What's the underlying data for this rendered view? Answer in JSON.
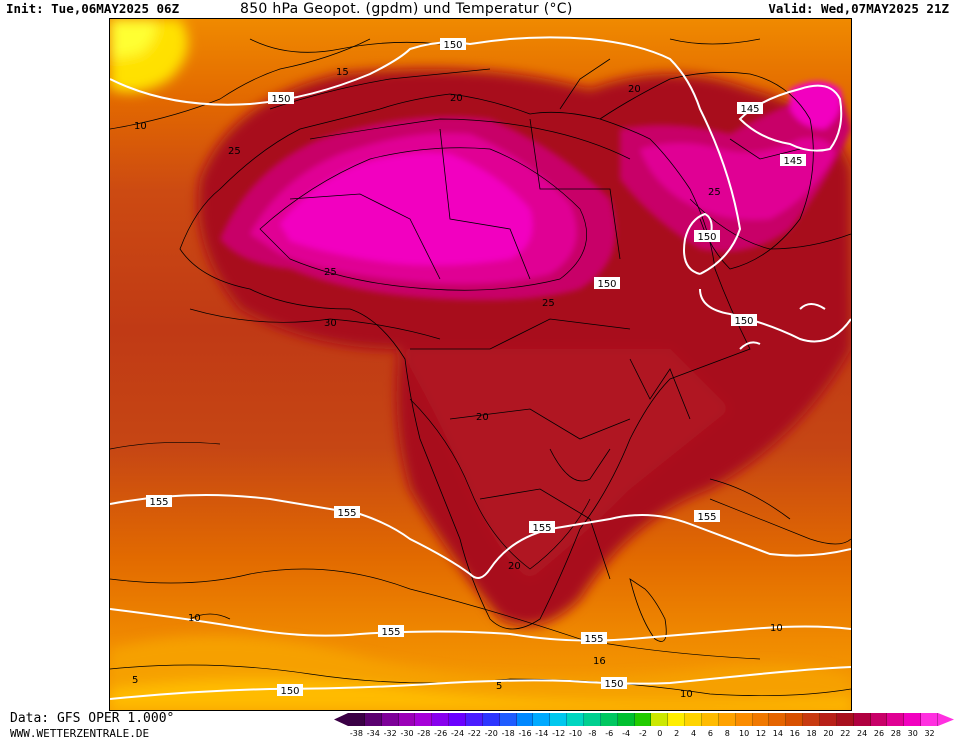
{
  "header": {
    "init": "Init: Tue,06MAY2025 06Z",
    "title": "850 hPa Geopot. (gpdm) und Temperatur (°C)",
    "valid": "Valid: Wed,07MAY2025 21Z"
  },
  "footer": {
    "data_source": "Data: GFS OPER 1.000°",
    "url": "WWW.WETTERZENTRALE.DE"
  },
  "map": {
    "geopotential_labels": [
      "150",
      "150",
      "145",
      "145",
      "150",
      "150",
      "150",
      "155",
      "155",
      "155",
      "155",
      "155",
      "155",
      "150",
      "150"
    ],
    "temperature_labels": [
      "10",
      "15",
      "20",
      "25",
      "20",
      "25",
      "25",
      "30",
      "25",
      "20",
      "20",
      "10",
      "16",
      "5",
      "5",
      "10",
      "10"
    ]
  },
  "legend": {
    "ticks": [
      "-38",
      "-34",
      "-32",
      "-30",
      "-28",
      "-26",
      "-24",
      "-22",
      "-20",
      "-18",
      "-16",
      "-14",
      "-12",
      "-10",
      "-8",
      "-6",
      "-4",
      "-2",
      "0",
      "2",
      "4",
      "6",
      "8",
      "10",
      "12",
      "14",
      "16",
      "18",
      "20",
      "22",
      "24",
      "26",
      "28",
      "30",
      "32"
    ],
    "colors": [
      "#3a0045",
      "#5a0070",
      "#7d0099",
      "#9b00b8",
      "#a600d9",
      "#8800ee",
      "#6a00ff",
      "#4b1dff",
      "#2d35ff",
      "#1f5cff",
      "#0088ff",
      "#00aaff",
      "#00c8ee",
      "#00d6c0",
      "#00d090",
      "#00c860",
      "#00c030",
      "#22cc00",
      "#cce800",
      "#ffee00",
      "#ffd400",
      "#ffbb00",
      "#ffa200",
      "#fb8c00",
      "#f07800",
      "#e56400",
      "#d85000",
      "#c83a10",
      "#b82018",
      "#a8101e",
      "#b00040",
      "#c80068",
      "#e00094",
      "#f200c0",
      "#ff30e0"
    ]
  }
}
